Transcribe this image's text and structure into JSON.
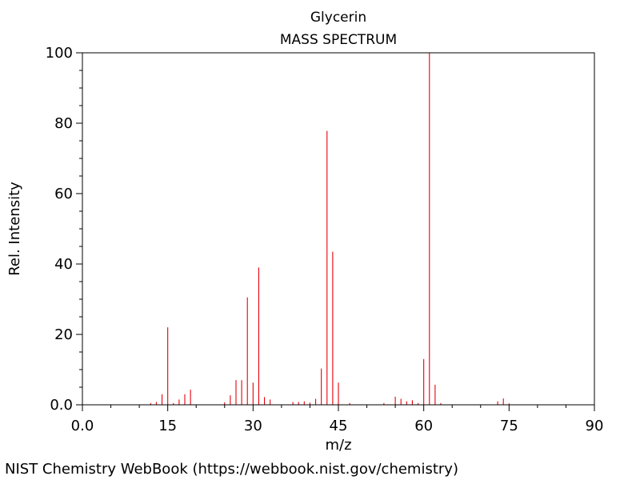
{
  "chart_data": {
    "type": "bar",
    "title": "Glycerin",
    "subtitle": "MASS SPECTRUM",
    "xlabel": "m/z",
    "ylabel": "Rel. Intensity",
    "xlim": [
      0,
      90
    ],
    "ylim": [
      0,
      100
    ],
    "x_ticks": [
      "0.0",
      "15",
      "30",
      "45",
      "60",
      "75",
      "90"
    ],
    "y_ticks": [
      "0.0",
      "20",
      "40",
      "60",
      "80",
      "100"
    ],
    "x_tick_values": [
      0,
      15,
      30,
      45,
      60,
      75,
      90
    ],
    "y_tick_values": [
      0,
      20,
      40,
      60,
      80,
      100
    ],
    "grid": false,
    "bar_color": "#e8000b",
    "peaks": [
      {
        "mz": 12,
        "intensity": 0.5
      },
      {
        "mz": 13,
        "intensity": 0.8
      },
      {
        "mz": 14,
        "intensity": 3.0
      },
      {
        "mz": 15,
        "intensity": 22.0
      },
      {
        "mz": 16,
        "intensity": 0.5
      },
      {
        "mz": 17,
        "intensity": 1.5
      },
      {
        "mz": 18,
        "intensity": 3.0
      },
      {
        "mz": 19,
        "intensity": 4.3
      },
      {
        "mz": 25,
        "intensity": 0.7
      },
      {
        "mz": 26,
        "intensity": 2.7
      },
      {
        "mz": 27,
        "intensity": 7.0
      },
      {
        "mz": 28,
        "intensity": 7.0
      },
      {
        "mz": 29,
        "intensity": 30.5
      },
      {
        "mz": 30,
        "intensity": 6.3
      },
      {
        "mz": 31,
        "intensity": 39.0
      },
      {
        "mz": 32,
        "intensity": 2.2
      },
      {
        "mz": 33,
        "intensity": 1.5
      },
      {
        "mz": 37,
        "intensity": 0.8
      },
      {
        "mz": 38,
        "intensity": 0.8
      },
      {
        "mz": 39,
        "intensity": 1.0
      },
      {
        "mz": 40,
        "intensity": 0.6
      },
      {
        "mz": 41,
        "intensity": 1.7
      },
      {
        "mz": 42,
        "intensity": 10.3
      },
      {
        "mz": 43,
        "intensity": 77.8
      },
      {
        "mz": 44,
        "intensity": 43.5
      },
      {
        "mz": 45,
        "intensity": 6.3
      },
      {
        "mz": 47,
        "intensity": 0.5
      },
      {
        "mz": 53,
        "intensity": 0.5
      },
      {
        "mz": 55,
        "intensity": 2.3
      },
      {
        "mz": 56,
        "intensity": 1.7
      },
      {
        "mz": 57,
        "intensity": 1.0
      },
      {
        "mz": 58,
        "intensity": 1.3
      },
      {
        "mz": 59,
        "intensity": 0.5
      },
      {
        "mz": 60,
        "intensity": 13.0
      },
      {
        "mz": 61,
        "intensity": 100.0
      },
      {
        "mz": 62,
        "intensity": 5.7
      },
      {
        "mz": 63,
        "intensity": 0.5
      },
      {
        "mz": 73,
        "intensity": 1.0
      },
      {
        "mz": 74,
        "intensity": 1.8
      },
      {
        "mz": 75,
        "intensity": 0.4
      }
    ]
  },
  "footer": {
    "source_text": "NIST Chemistry WebBook (https://webbook.nist.gov/chemistry)"
  }
}
